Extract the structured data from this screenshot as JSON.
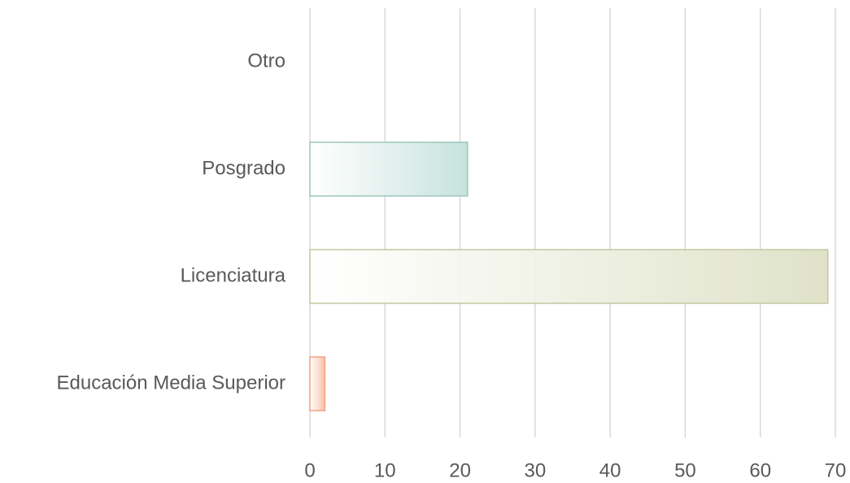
{
  "chart_data": {
    "type": "bar",
    "orientation": "horizontal",
    "categories": [
      "Educación Media Superior",
      "Licenciatura",
      "Posgrado",
      "Otro"
    ],
    "values": [
      2,
      69,
      21,
      0
    ],
    "colors": [
      "#f9c0a8",
      "#dfe2c8",
      "#c6e2dc",
      "#cccccc"
    ],
    "border_colors": [
      "#f2a283",
      "#c3c8a2",
      "#9cc6bd",
      "#aaaaaa"
    ],
    "xlim": [
      0,
      70
    ],
    "xticks": [
      0,
      10,
      20,
      30,
      40,
      50,
      60,
      70
    ],
    "grid": true
  }
}
